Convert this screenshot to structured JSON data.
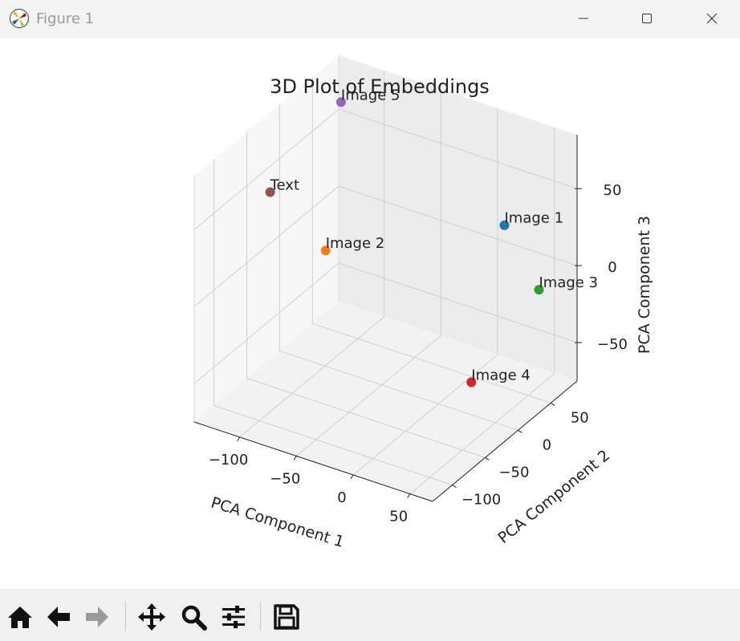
{
  "window": {
    "title": "Figure 1"
  },
  "toolbar": {
    "icons": [
      "home-icon",
      "back-arrow-icon",
      "forward-arrow-icon",
      "pan-icon",
      "zoom-icon",
      "configure-subplots-icon",
      "save-icon"
    ]
  },
  "chart_data": {
    "type": "scatter",
    "projection": "3d",
    "title": "3D Plot of Embeddings",
    "xlabel": "PCA Component 1",
    "ylabel": "PCA Component 2",
    "zlabel": "PCA Component 3",
    "xlim": [
      -140,
      70
    ],
    "ylim": [
      -130,
      90
    ],
    "zlim": [
      -75,
      85
    ],
    "xticks": [
      -100,
      -50,
      0,
      50
    ],
    "yticks": [
      -100,
      -50,
      0,
      50
    ],
    "zticks": [
      -50,
      0,
      50
    ],
    "xtick_labels": [
      "−100",
      "−50",
      "0",
      "50"
    ],
    "ytick_labels": [
      "−100",
      "−50",
      "0",
      "50"
    ],
    "ztick_labels": [
      "−50",
      "0",
      "50"
    ],
    "grid": true,
    "points": [
      {
        "label": "Image 1",
        "x": 17,
        "y": 71,
        "z": 20,
        "color": "#1f77b4"
      },
      {
        "label": "Image 2",
        "x": -52,
        "y": -82,
        "z": 41,
        "color": "#ff7f0e"
      },
      {
        "label": "Image 3",
        "x": 63,
        "y": 44,
        "z": -1,
        "color": "#2ca02c"
      },
      {
        "label": "Image 4",
        "x": 59,
        "y": -52,
        "z": -28,
        "color": "#d62728"
      },
      {
        "label": "Image 5",
        "x": -116,
        "y": 52,
        "z": 74,
        "color": "#9467bd"
      },
      {
        "label": "Text",
        "x": -124,
        "y": -42,
        "z": 47,
        "color": "#8c564b"
      }
    ]
  }
}
